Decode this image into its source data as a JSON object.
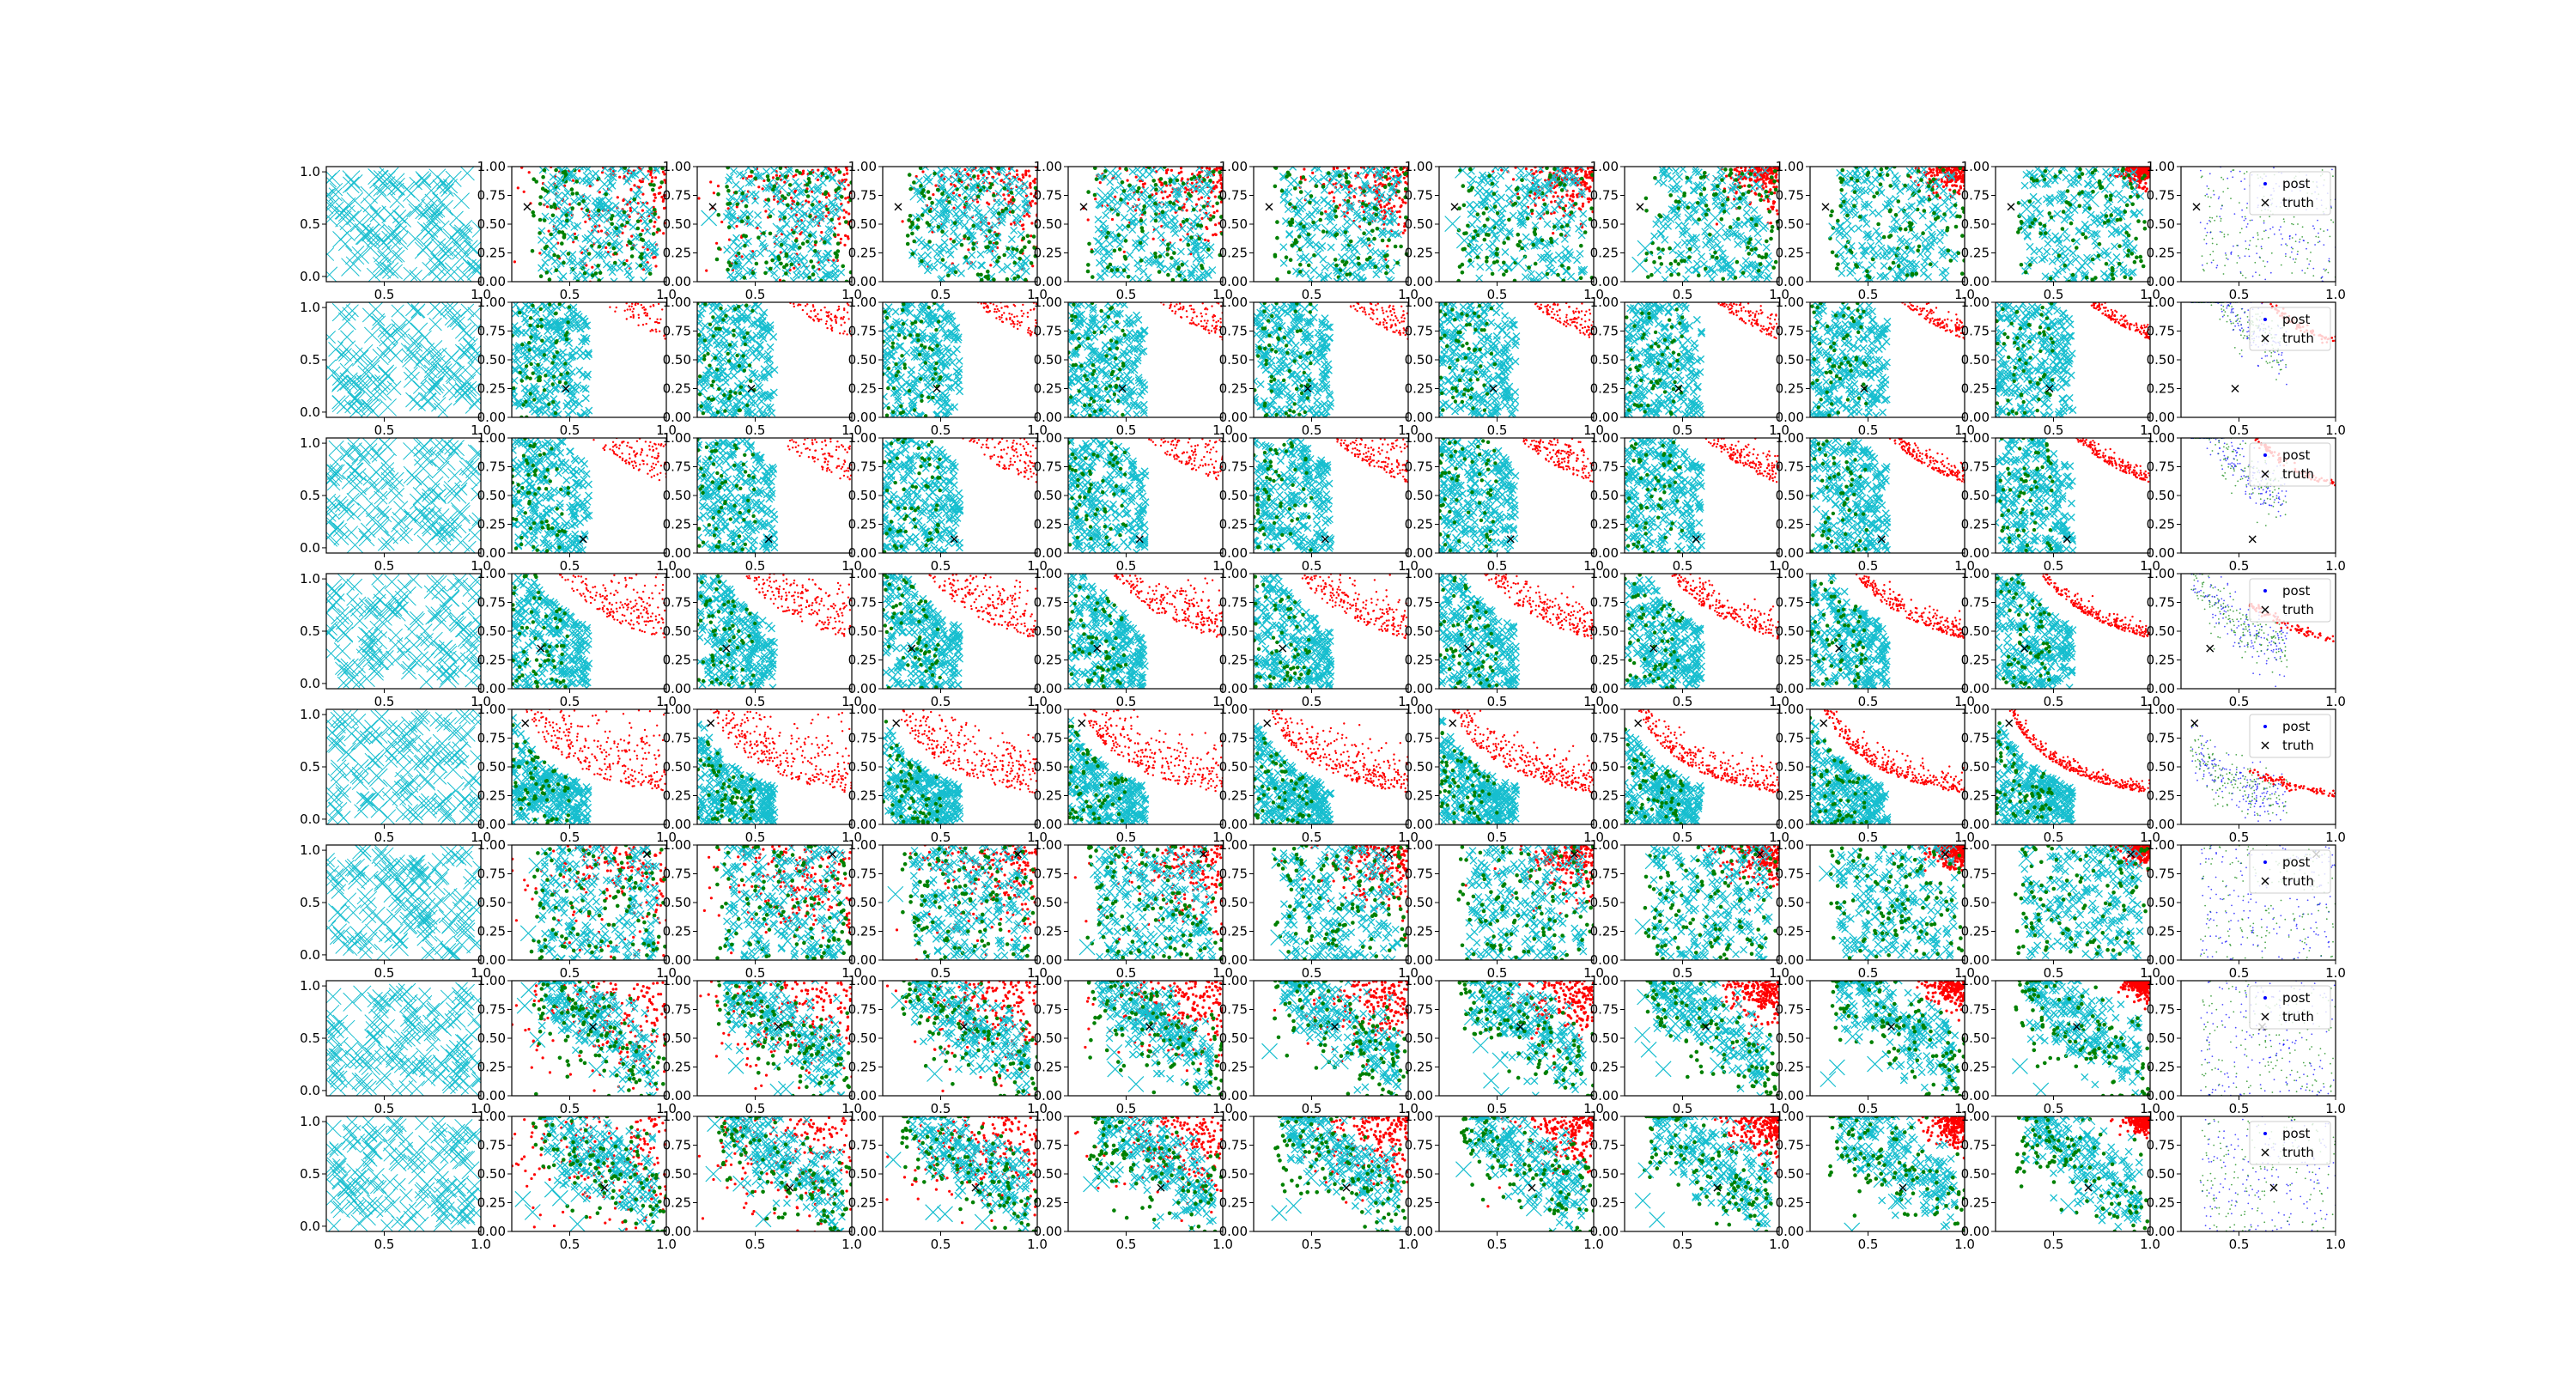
{
  "colors": {
    "axes": "#000000",
    "proposal": "#17becf",
    "accepted": "#008000",
    "rejected": "#ff0000",
    "posterior": "#0000ff",
    "truth": "#000000"
  },
  "legend": {
    "entries": [
      "post",
      "truth"
    ]
  },
  "chart_data": {
    "type": "scatter",
    "layout": {
      "rows": 8,
      "cols": 11
    },
    "grid": false,
    "xlim_first_col": [
      0.2,
      1.0
    ],
    "xlim": [
      0.2,
      1.0
    ],
    "ylim_first_col": [
      -0.05,
      1.05
    ],
    "ylim": [
      0.0,
      1.0
    ],
    "xticks": [
      0.5,
      1.0
    ],
    "xtick_labels": [
      "0.5",
      "1.0"
    ],
    "yticks_first_col": [
      0.0,
      0.5,
      1.0
    ],
    "ytick_labels_first_col": [
      "0.0",
      "0.5",
      "1.0"
    ],
    "yticks": [
      0.0,
      0.25,
      0.5,
      0.75,
      1.0
    ],
    "ytick_labels": [
      "0.00",
      "0.25",
      "0.50",
      "0.75",
      "1.00"
    ],
    "legend_position": "top-right (last column only)",
    "rows": [
      {
        "truth": [
          0.28,
          0.65
        ],
        "pattern": "diffuse"
      },
      {
        "truth": [
          0.48,
          0.25
        ],
        "pattern": "curve",
        "curve_k": 0.5
      },
      {
        "truth": [
          0.57,
          0.12
        ],
        "pattern": "curve",
        "curve_k": 0.45
      },
      {
        "truth": [
          0.35,
          0.35
        ],
        "pattern": "curve",
        "curve_k": 0.32
      },
      {
        "truth": [
          0.27,
          0.88
        ],
        "pattern": "curve",
        "curve_k": 0.2
      },
      {
        "truth": [
          0.9,
          0.92
        ],
        "pattern": "diffuse"
      },
      {
        "truth": [
          0.62,
          0.6
        ],
        "pattern": "band"
      },
      {
        "truth": [
          0.68,
          0.38
        ],
        "pattern": "band"
      }
    ]
  }
}
